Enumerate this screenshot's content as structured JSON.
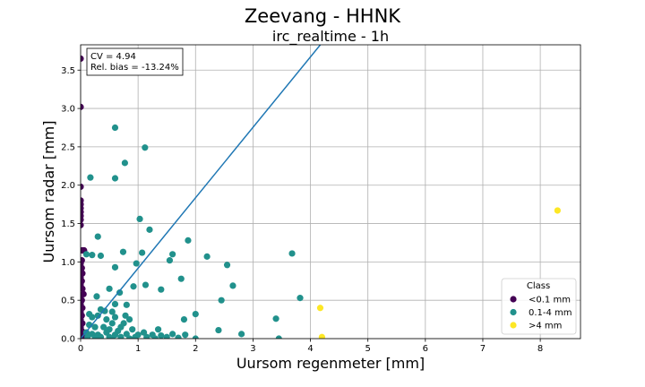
{
  "chart_data": {
    "type": "scatter",
    "title": "Zeevang - HHNK",
    "subtitle": "irc_realtime - 1h",
    "xlabel": "Uursom regenmeter [mm]",
    "ylabel": "Uursom radar [mm]",
    "xlim": [
      0,
      8.7
    ],
    "ylim": [
      0,
      3.83
    ],
    "xticks": [
      "0",
      "1",
      "2",
      "3",
      "4",
      "5",
      "6",
      "7",
      "8"
    ],
    "yticks": [
      "0.0",
      "0.5",
      "1.0",
      "1.5",
      "2.0",
      "2.5",
      "3.0",
      "3.5"
    ],
    "grid": true,
    "annotation": [
      "CV = 4.94",
      "Rel. bias = -13.24%"
    ],
    "regression_line": {
      "slope": 0.918,
      "intercept": 0.0
    },
    "legend": {
      "title": "Class",
      "placement": "lower-right",
      "entries": [
        "<0.1 mm",
        "0.1-4 mm",
        ">4 mm"
      ]
    },
    "series": [
      {
        "name": "<0.1 mm",
        "color": "#440154",
        "points": [
          [
            0,
            3.65
          ],
          [
            0,
            3.02
          ],
          [
            0,
            1.98
          ],
          [
            0,
            1.8
          ],
          [
            0,
            1.75
          ],
          [
            0,
            1.7
          ],
          [
            0,
            1.65
          ],
          [
            0,
            1.6
          ],
          [
            0,
            1.55
          ],
          [
            0,
            1.48
          ],
          [
            0.03,
            1.15
          ],
          [
            0.06,
            1.15
          ],
          [
            0.02,
            1.02
          ],
          [
            0,
            0.98
          ],
          [
            0.02,
            0.92
          ],
          [
            0,
            0.88
          ],
          [
            0.03,
            0.85
          ],
          [
            0,
            0.8
          ],
          [
            0.02,
            0.75
          ],
          [
            0,
            0.7
          ],
          [
            0.03,
            0.65
          ],
          [
            0.05,
            0.58
          ],
          [
            0,
            0.55
          ],
          [
            0.02,
            0.5
          ],
          [
            0,
            0.45
          ],
          [
            0.03,
            0.4
          ],
          [
            0,
            0.35
          ],
          [
            0.02,
            0.3
          ],
          [
            0,
            0.25
          ],
          [
            0.03,
            0.2
          ],
          [
            0,
            0.15
          ],
          [
            0.02,
            0.1
          ],
          [
            0,
            0.05
          ],
          [
            0.03,
            0.02
          ],
          [
            0,
            0
          ]
        ]
      },
      {
        "name": "0.1-4 mm",
        "color": "#21918c",
        "points": [
          [
            0.6,
            2.75
          ],
          [
            1.12,
            2.49
          ],
          [
            0.77,
            2.29
          ],
          [
            0.17,
            2.1
          ],
          [
            0.6,
            2.09
          ],
          [
            1.03,
            1.56
          ],
          [
            1.2,
            1.42
          ],
          [
            0.3,
            1.33
          ],
          [
            0.1,
            1.1
          ],
          [
            0.35,
            1.08
          ],
          [
            0.2,
            1.09
          ],
          [
            0.74,
            1.13
          ],
          [
            1.07,
            1.12
          ],
          [
            1.6,
            1.1
          ],
          [
            1.87,
            1.28
          ],
          [
            2.2,
            1.07
          ],
          [
            1.55,
            1.02
          ],
          [
            0.97,
            0.98
          ],
          [
            2.55,
            0.96
          ],
          [
            0.6,
            0.93
          ],
          [
            3.68,
            1.11
          ],
          [
            1.75,
            0.78
          ],
          [
            1.13,
            0.7
          ],
          [
            0.92,
            0.68
          ],
          [
            0.5,
            0.65
          ],
          [
            1.4,
            0.64
          ],
          [
            2.65,
            0.69
          ],
          [
            3.82,
            0.53
          ],
          [
            0.28,
            0.55
          ],
          [
            0.68,
            0.6
          ],
          [
            2.45,
            0.5
          ],
          [
            0.6,
            0.45
          ],
          [
            0.8,
            0.44
          ],
          [
            0.35,
            0.38
          ],
          [
            0.42,
            0.36
          ],
          [
            0.55,
            0.35
          ],
          [
            0.3,
            0.3
          ],
          [
            0.15,
            0.32
          ],
          [
            0.2,
            0.28
          ],
          [
            0.6,
            0.28
          ],
          [
            0.78,
            0.3
          ],
          [
            2.0,
            0.32
          ],
          [
            1.8,
            0.25
          ],
          [
            3.4,
            0.26
          ],
          [
            0.45,
            0.25
          ],
          [
            0.55,
            0.2
          ],
          [
            0.75,
            0.2
          ],
          [
            0.85,
            0.25
          ],
          [
            0.15,
            0.18
          ],
          [
            0.25,
            0.15
          ],
          [
            0.4,
            0.15
          ],
          [
            0.5,
            0.12
          ],
          [
            0.65,
            0.1
          ],
          [
            0.7,
            0.15
          ],
          [
            0.9,
            0.12
          ],
          [
            1.35,
            0.12
          ],
          [
            2.4,
            0.11
          ],
          [
            2.8,
            0.06
          ],
          [
            0.1,
            0.08
          ],
          [
            0.2,
            0.06
          ],
          [
            0.3,
            0.05
          ],
          [
            0.45,
            0.08
          ],
          [
            0.6,
            0.05
          ],
          [
            0.8,
            0.06
          ],
          [
            1.0,
            0.05
          ],
          [
            1.1,
            0.08
          ],
          [
            1.25,
            0.05
          ],
          [
            1.4,
            0.04
          ],
          [
            1.6,
            0.06
          ],
          [
            1.82,
            0.05
          ],
          [
            0.12,
            0.02
          ],
          [
            0.35,
            0.02
          ],
          [
            0.5,
            0.02
          ],
          [
            0.7,
            0.02
          ],
          [
            0.95,
            0.02
          ],
          [
            1.15,
            0.02
          ],
          [
            1.5,
            0.02
          ],
          [
            1.7,
            0.01
          ],
          [
            2.0,
            0.0
          ],
          [
            3.45,
            0.0
          ],
          [
            0.25,
            0.0
          ],
          [
            0.55,
            0.0
          ],
          [
            0.85,
            0.0
          ],
          [
            1.3,
            0.0
          ]
        ]
      },
      {
        "name": ">4 mm",
        "color": "#fde725",
        "points": [
          [
            8.3,
            1.67
          ],
          [
            4.17,
            0.4
          ],
          [
            4.2,
            0.02
          ]
        ]
      }
    ]
  }
}
